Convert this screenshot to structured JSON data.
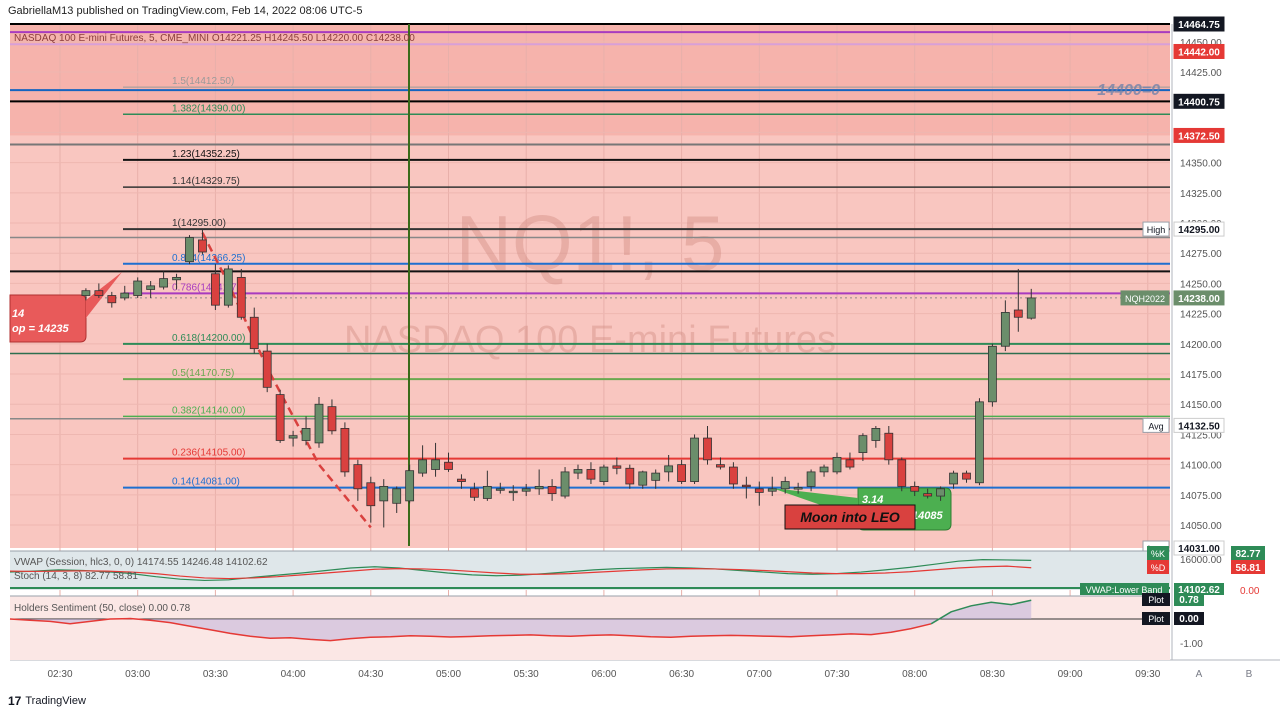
{
  "header": {
    "publisher": "GabriellaM13 published on TradingView.com, Feb 14, 2022 08:06 UTC-5"
  },
  "footer": {
    "brand": "TradingView"
  },
  "colors": {
    "up": "#6b8e6b",
    "down": "#d9413f",
    "bg_zone": "#f9c6c0",
    "bg_top_zone": "#f6b3ac"
  },
  "chart_data": [
    {
      "type": "candlestick",
      "symbol": "NQ1!, 5",
      "watermark_symbol": "NQ1!, 5",
      "watermark_name": "NASDAQ 100 E-mini Futures",
      "legend": "NASDAQ 100 E-mini Futures, 5, CME_MINI  O14221.25  H14245.50  L14220.00  C14238.00",
      "x_ticks": [
        "02:30",
        "03:00",
        "03:30",
        "04:00",
        "04:30",
        "05:00",
        "05:30",
        "06:00",
        "06:30",
        "07:00",
        "07:30",
        "08:00",
        "08:30",
        "09:00",
        "09:30"
      ],
      "y_ticks": [
        14450,
        14425,
        14400,
        14375,
        14350,
        14325,
        14300,
        14275,
        14250,
        14225,
        14200,
        14175,
        14150,
        14125,
        14100,
        14075,
        14050
      ],
      "y_tick_labels": [
        "14450.00",
        "14425.00",
        "14400.00",
        "14375.00",
        "14350.00",
        "14325.00",
        "14300.00",
        "14275.00",
        "14250.00",
        "14225.00",
        "14200.00",
        "14175.00",
        "14150.00",
        "14125.00",
        "14100.00",
        "14075.00",
        "14050.00"
      ],
      "ylim": [
        14031,
        14464.75
      ],
      "candles": [
        {
          "t": "02:40",
          "o": 14240,
          "h": 14246,
          "l": 14236,
          "c": 14244
        },
        {
          "t": "02:45",
          "o": 14244,
          "h": 14250,
          "l": 14238,
          "c": 14240
        },
        {
          "t": "02:50",
          "o": 14240,
          "h": 14243,
          "l": 14230,
          "c": 14234
        },
        {
          "t": "02:55",
          "o": 14238,
          "h": 14248,
          "l": 14236,
          "c": 14242
        },
        {
          "t": "03:00",
          "o": 14240,
          "h": 14255,
          "l": 14238,
          "c": 14252
        },
        {
          "t": "03:05",
          "o": 14245,
          "h": 14252,
          "l": 14238,
          "c": 14248
        },
        {
          "t": "03:10",
          "o": 14247,
          "h": 14260,
          "l": 14245,
          "c": 14254
        },
        {
          "t": "03:15",
          "o": 14253,
          "h": 14258,
          "l": 14245,
          "c": 14255
        },
        {
          "t": "03:20",
          "o": 14268,
          "h": 14290,
          "l": 14266,
          "c": 14288
        },
        {
          "t": "03:25",
          "o": 14286,
          "h": 14295,
          "l": 14274,
          "c": 14276
        },
        {
          "t": "03:30",
          "o": 14258,
          "h": 14266,
          "l": 14228,
          "c": 14232
        },
        {
          "t": "03:35",
          "o": 14232,
          "h": 14265,
          "l": 14230,
          "c": 14262
        },
        {
          "t": "03:40",
          "o": 14255,
          "h": 14262,
          "l": 14220,
          "c": 14222
        },
        {
          "t": "03:45",
          "o": 14222,
          "h": 14230,
          "l": 14192,
          "c": 14196
        },
        {
          "t": "03:50",
          "o": 14194,
          "h": 14200,
          "l": 14160,
          "c": 14164
        },
        {
          "t": "03:55",
          "o": 14158,
          "h": 14162,
          "l": 14118,
          "c": 14120
        },
        {
          "t": "04:00",
          "o": 14122,
          "h": 14128,
          "l": 14115,
          "c": 14124
        },
        {
          "t": "04:05",
          "o": 14120,
          "h": 14140,
          "l": 14116,
          "c": 14130
        },
        {
          "t": "04:10",
          "o": 14118,
          "h": 14156,
          "l": 14114,
          "c": 14150
        },
        {
          "t": "04:15",
          "o": 14148,
          "h": 14154,
          "l": 14125,
          "c": 14128
        },
        {
          "t": "04:20",
          "o": 14130,
          "h": 14135,
          "l": 14090,
          "c": 14094
        },
        {
          "t": "04:25",
          "o": 14100,
          "h": 14104,
          "l": 14070,
          "c": 14080
        },
        {
          "t": "04:30",
          "o": 14085,
          "h": 14090,
          "l": 14052,
          "c": 14066
        },
        {
          "t": "04:35",
          "o": 14070,
          "h": 14088,
          "l": 14048,
          "c": 14082
        },
        {
          "t": "04:40",
          "o": 14068,
          "h": 14082,
          "l": 14060,
          "c": 14080
        },
        {
          "t": "04:45",
          "o": 14070,
          "h": 14100,
          "l": 14068,
          "c": 14095
        },
        {
          "t": "04:50",
          "o": 14093,
          "h": 14116,
          "l": 14090,
          "c": 14104
        },
        {
          "t": "04:55",
          "o": 14096,
          "h": 14118,
          "l": 14090,
          "c": 14104
        },
        {
          "t": "05:00",
          "o": 14102,
          "h": 14110,
          "l": 14094,
          "c": 14096
        },
        {
          "t": "05:05",
          "o": 14088,
          "h": 14092,
          "l": 14080,
          "c": 14086
        },
        {
          "t": "05:10",
          "o": 14080,
          "h": 14085,
          "l": 14070,
          "c": 14073
        },
        {
          "t": "05:15",
          "o": 14072,
          "h": 14095,
          "l": 14070,
          "c": 14082
        },
        {
          "t": "05:20",
          "o": 14079,
          "h": 14085,
          "l": 14076,
          "c": 14080
        },
        {
          "t": "05:25",
          "o": 14077,
          "h": 14083,
          "l": 14070,
          "c": 14078
        },
        {
          "t": "05:30",
          "o": 14078,
          "h": 14084,
          "l": 14074,
          "c": 14080
        },
        {
          "t": "05:35",
          "o": 14080,
          "h": 14096,
          "l": 14075,
          "c": 14082
        },
        {
          "t": "05:40",
          "o": 14082,
          "h": 14088,
          "l": 14070,
          "c": 14076
        },
        {
          "t": "05:45",
          "o": 14074,
          "h": 14098,
          "l": 14072,
          "c": 14094
        },
        {
          "t": "05:50",
          "o": 14093,
          "h": 14100,
          "l": 14088,
          "c": 14096
        },
        {
          "t": "05:55",
          "o": 14096,
          "h": 14102,
          "l": 14084,
          "c": 14088
        },
        {
          "t": "06:00",
          "o": 14086,
          "h": 14100,
          "l": 14083,
          "c": 14098
        },
        {
          "t": "06:05",
          "o": 14099,
          "h": 14106,
          "l": 14092,
          "c": 14097
        },
        {
          "t": "06:10",
          "o": 14097,
          "h": 14100,
          "l": 14080,
          "c": 14084
        },
        {
          "t": "06:15",
          "o": 14083,
          "h": 14095,
          "l": 14080,
          "c": 14094
        },
        {
          "t": "06:20",
          "o": 14087,
          "h": 14096,
          "l": 14080,
          "c": 14093
        },
        {
          "t": "06:25",
          "o": 14094,
          "h": 14108,
          "l": 14086,
          "c": 14099
        },
        {
          "t": "06:30",
          "o": 14100,
          "h": 14104,
          "l": 14084,
          "c": 14086
        },
        {
          "t": "06:35",
          "o": 14086,
          "h": 14125,
          "l": 14084,
          "c": 14122
        },
        {
          "t": "06:40",
          "o": 14122,
          "h": 14132,
          "l": 14100,
          "c": 14104
        },
        {
          "t": "06:45",
          "o": 14100,
          "h": 14106,
          "l": 14096,
          "c": 14098
        },
        {
          "t": "06:50",
          "o": 14098,
          "h": 14102,
          "l": 14080,
          "c": 14084
        },
        {
          "t": "06:55",
          "o": 14083,
          "h": 14090,
          "l": 14072,
          "c": 14082
        },
        {
          "t": "07:00",
          "o": 14080,
          "h": 14086,
          "l": 14066,
          "c": 14077
        },
        {
          "t": "07:05",
          "o": 14078,
          "h": 14090,
          "l": 14074,
          "c": 14080
        },
        {
          "t": "07:10",
          "o": 14080,
          "h": 14090,
          "l": 14076,
          "c": 14086
        },
        {
          "t": "07:15",
          "o": 14080,
          "h": 14085,
          "l": 14076,
          "c": 14081
        },
        {
          "t": "07:20",
          "o": 14082,
          "h": 14096,
          "l": 14078,
          "c": 14094
        },
        {
          "t": "07:25",
          "o": 14094,
          "h": 14100,
          "l": 14090,
          "c": 14098
        },
        {
          "t": "07:30",
          "o": 14094,
          "h": 14110,
          "l": 14092,
          "c": 14106
        },
        {
          "t": "07:35",
          "o": 14104,
          "h": 14110,
          "l": 14096,
          "c": 14098
        },
        {
          "t": "07:40",
          "o": 14110,
          "h": 14126,
          "l": 14103,
          "c": 14124
        },
        {
          "t": "07:45",
          "o": 14120,
          "h": 14132,
          "l": 14114,
          "c": 14130
        },
        {
          "t": "07:50",
          "o": 14126,
          "h": 14132,
          "l": 14100,
          "c": 14104
        },
        {
          "t": "07:55",
          "o": 14104,
          "h": 14106,
          "l": 14078,
          "c": 14082
        },
        {
          "t": "08:00",
          "o": 14082,
          "h": 14086,
          "l": 14074,
          "c": 14078
        },
        {
          "t": "08:05",
          "o": 14076,
          "h": 14080,
          "l": 14072,
          "c": 14074
        },
        {
          "t": "08:10",
          "o": 14074,
          "h": 14082,
          "l": 14070,
          "c": 14080
        },
        {
          "t": "08:15",
          "o": 14084,
          "h": 14095,
          "l": 14080,
          "c": 14093
        },
        {
          "t": "08:20",
          "o": 14093,
          "h": 14095,
          "l": 14085,
          "c": 14088
        },
        {
          "t": "08:25",
          "o": 14085,
          "h": 14155,
          "l": 14083,
          "c": 14152
        },
        {
          "t": "08:30",
          "o": 14152,
          "h": 14200,
          "l": 14148,
          "c": 14198
        },
        {
          "t": "08:35",
          "o": 14198,
          "h": 14236,
          "l": 14194,
          "c": 14226
        },
        {
          "t": "08:40",
          "o": 14228,
          "h": 14262,
          "l": 14210,
          "c": 14222
        },
        {
          "t": "08:45",
          "o": 14221.25,
          "h": 14245.5,
          "l": 14220,
          "c": 14238
        }
      ],
      "levels": [
        {
          "label": "",
          "value": 14464.75,
          "color": "#000000",
          "width": 2
        },
        {
          "label": "",
          "value": 14458,
          "color": "#a83bbf",
          "width": 2
        },
        {
          "label": "",
          "value": 14448,
          "color": "#d8a0d8",
          "width": 2
        },
        {
          "label": "",
          "value": 14410,
          "color": "#1565c0",
          "width": 2
        },
        {
          "label": "1.5(14412.50)",
          "value": 14412.5,
          "color": "#9a9a9a",
          "width": 1
        },
        {
          "label": "",
          "value": 14400.75,
          "color": "#000000",
          "width": 2
        },
        {
          "label": "1.382(14390.00)",
          "value": 14390,
          "color": "#2e8b57",
          "width": 1.5
        },
        {
          "label": "",
          "value": 14365,
          "color": "#777777",
          "width": 2
        },
        {
          "label": "1.23(14352.25)",
          "value": 14352.25,
          "color": "#111111",
          "width": 2
        },
        {
          "label": "1.14(14329.75)",
          "value": 14329.75,
          "color": "#333333",
          "width": 1.5
        },
        {
          "label": "1(14295.00)",
          "value": 14295,
          "color": "#333333",
          "width": 2
        },
        {
          "label": "",
          "value": 14288,
          "color": "#888888",
          "width": 1.5
        },
        {
          "label": "0.884(14266.25)",
          "value": 14266.25,
          "color": "#1e6fd0",
          "width": 2
        },
        {
          "label": "",
          "value": 14260,
          "color": "#111111",
          "width": 2
        },
        {
          "label": "0.786(14241.75)",
          "value": 14241.75,
          "color": "#a83bbf",
          "width": 2
        },
        {
          "label": "0.618(14200.00)",
          "value": 14200,
          "color": "#2e8b57",
          "width": 2
        },
        {
          "label": "",
          "value": 14192,
          "color": "#2e6f4f",
          "width": 1.5
        },
        {
          "label": "0.5(14170.75)",
          "value": 14170.75,
          "color": "#6aa84f",
          "width": 2
        },
        {
          "label": "0.382(14140.00)",
          "value": 14140,
          "color": "#4caf50",
          "width": 1.5
        },
        {
          "label": "",
          "value": 14138,
          "color": "#888888",
          "width": 1.5
        },
        {
          "label": "0.236(14105.00)",
          "value": 14105,
          "color": "#e53935",
          "width": 2
        },
        {
          "label": "0.14(14081.00)",
          "value": 14081,
          "color": "#1e6fd0",
          "width": 2
        }
      ],
      "price_badges": [
        {
          "text": "14464.75",
          "value": 14464.75,
          "bg": "#131722",
          "fg": "#ffffff"
        },
        {
          "text": "14442.00",
          "value": 14442,
          "bg": "#e53935",
          "fg": "#ffffff"
        },
        {
          "text": "14400.75",
          "value": 14400.75,
          "bg": "#131722",
          "fg": "#ffffff"
        },
        {
          "text": "14372.50",
          "value": 14372.5,
          "bg": "#e53935",
          "fg": "#ffffff"
        },
        {
          "text": "14295.00",
          "value": 14295,
          "bg": "#ffffff",
          "fg": "#131722"
        },
        {
          "text": "14238.00",
          "value": 14238,
          "bg": "#6b8e6b",
          "fg": "#ffffff"
        },
        {
          "text": "14132.50",
          "value": 14132.5,
          "bg": "#ffffff",
          "fg": "#131722"
        },
        {
          "text": "14031.00",
          "value": 14031,
          "bg": "#ffffff",
          "fg": "#131722"
        }
      ],
      "side_tags": [
        {
          "text": "High",
          "value": 14295
        },
        {
          "text": "NQH2022",
          "value": 14238
        },
        {
          "text": "Avg",
          "value": 14132.5
        },
        {
          "text": "Low",
          "value": 14031
        }
      ],
      "callout_left": {
        "line1": "14",
        "line2": "op = 14235"
      },
      "callout_right": {
        "line1": "3.14",
        "line2": "14085"
      },
      "note": "Moon into LEO",
      "big_label": "14400=0"
    },
    {
      "type": "line",
      "panel": "VWAP / Stoch",
      "legend_vwap": "VWAP (Session, hlc3, 0, 0)  14174.55  14246.48  14102.62",
      "legend_stoch": "Stoch (14, 3, 8)  82.77  58.81",
      "axis_labels": [
        "16000.00",
        "0.00"
      ],
      "badges": [
        {
          "name": "%K",
          "value": "82.77"
        },
        {
          "name": "%D",
          "value": "58.81"
        },
        {
          "name": "VWAP:Lower Band",
          "value": "14102.62"
        }
      ],
      "series": [
        {
          "name": "%K",
          "values": [
            45,
            48,
            52,
            50,
            46,
            40,
            30,
            22,
            18,
            20,
            28,
            35,
            42,
            50,
            58,
            62,
            58,
            50,
            42,
            36,
            33,
            35,
            40,
            46,
            52,
            56,
            58,
            60,
            58,
            55,
            50,
            45,
            40,
            38,
            40,
            45,
            52,
            60,
            70,
            80,
            85,
            84,
            82.77
          ]
        },
        {
          "name": "%D",
          "values": [
            48,
            47,
            48,
            49,
            48,
            45,
            40,
            32,
            26,
            24,
            26,
            30,
            36,
            42,
            48,
            54,
            56,
            55,
            52,
            47,
            42,
            38,
            38,
            40,
            44,
            48,
            52,
            55,
            56,
            55,
            53,
            50,
            46,
            42,
            40,
            40,
            42,
            46,
            52,
            58,
            62,
            64,
            58.81
          ]
        }
      ]
    },
    {
      "type": "area",
      "panel": "Holders Sentiment",
      "legend": "Holders Sentiment (50, close)  0.00  0.78",
      "axis_labels": [
        "-1.00"
      ],
      "badges": [
        {
          "name": "Plot",
          "value": "0.78"
        },
        {
          "name": "Plot",
          "value": "0.00"
        }
      ],
      "values": [
        0.0,
        -0.05,
        -0.1,
        -0.2,
        -0.1,
        0.0,
        0.02,
        -0.05,
        -0.15,
        -0.3,
        -0.45,
        -0.6,
        -0.72,
        -0.8,
        -0.78,
        -0.85,
        -0.9,
        -0.82,
        -0.76,
        -0.74,
        -0.7,
        -0.72,
        -0.75,
        -0.73,
        -0.7,
        -0.68,
        -0.66,
        -0.7,
        -0.72,
        -0.68,
        -0.66,
        -0.7,
        -0.74,
        -0.76,
        -0.72,
        -0.7,
        -0.68,
        -0.7,
        -0.72,
        -0.74,
        -0.7,
        -0.66,
        -0.62,
        -0.65,
        -0.55,
        -0.4,
        -0.2,
        0.3,
        0.55,
        0.7,
        0.6,
        0.78
      ]
    }
  ]
}
